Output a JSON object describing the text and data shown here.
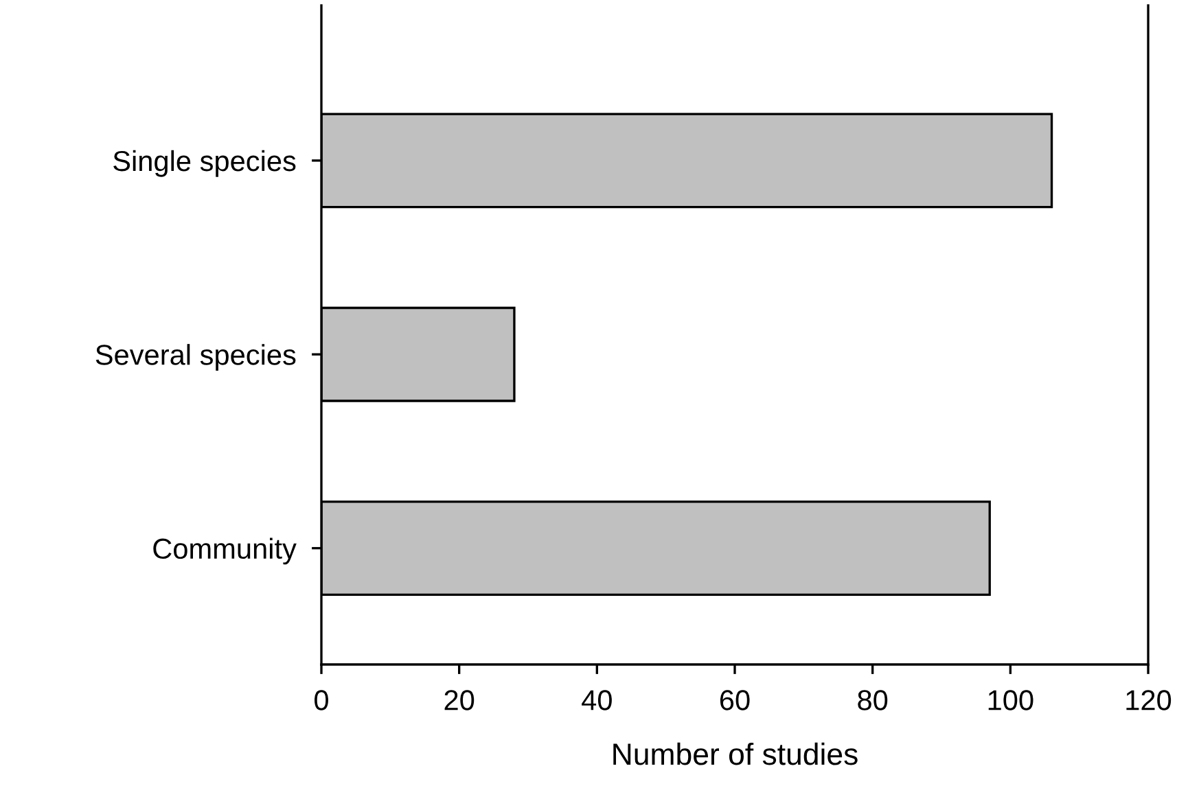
{
  "chart_data": {
    "type": "bar",
    "orientation": "horizontal",
    "xlabel": "Number of studies",
    "categories": [
      "Single species",
      "Several species",
      "Community"
    ],
    "values": [
      106,
      28,
      97
    ],
    "color": "#c0c0c0",
    "xlim": [
      0,
      120
    ],
    "xticks": [
      0,
      20,
      40,
      60,
      80,
      100,
      120
    ],
    "grid": false
  }
}
